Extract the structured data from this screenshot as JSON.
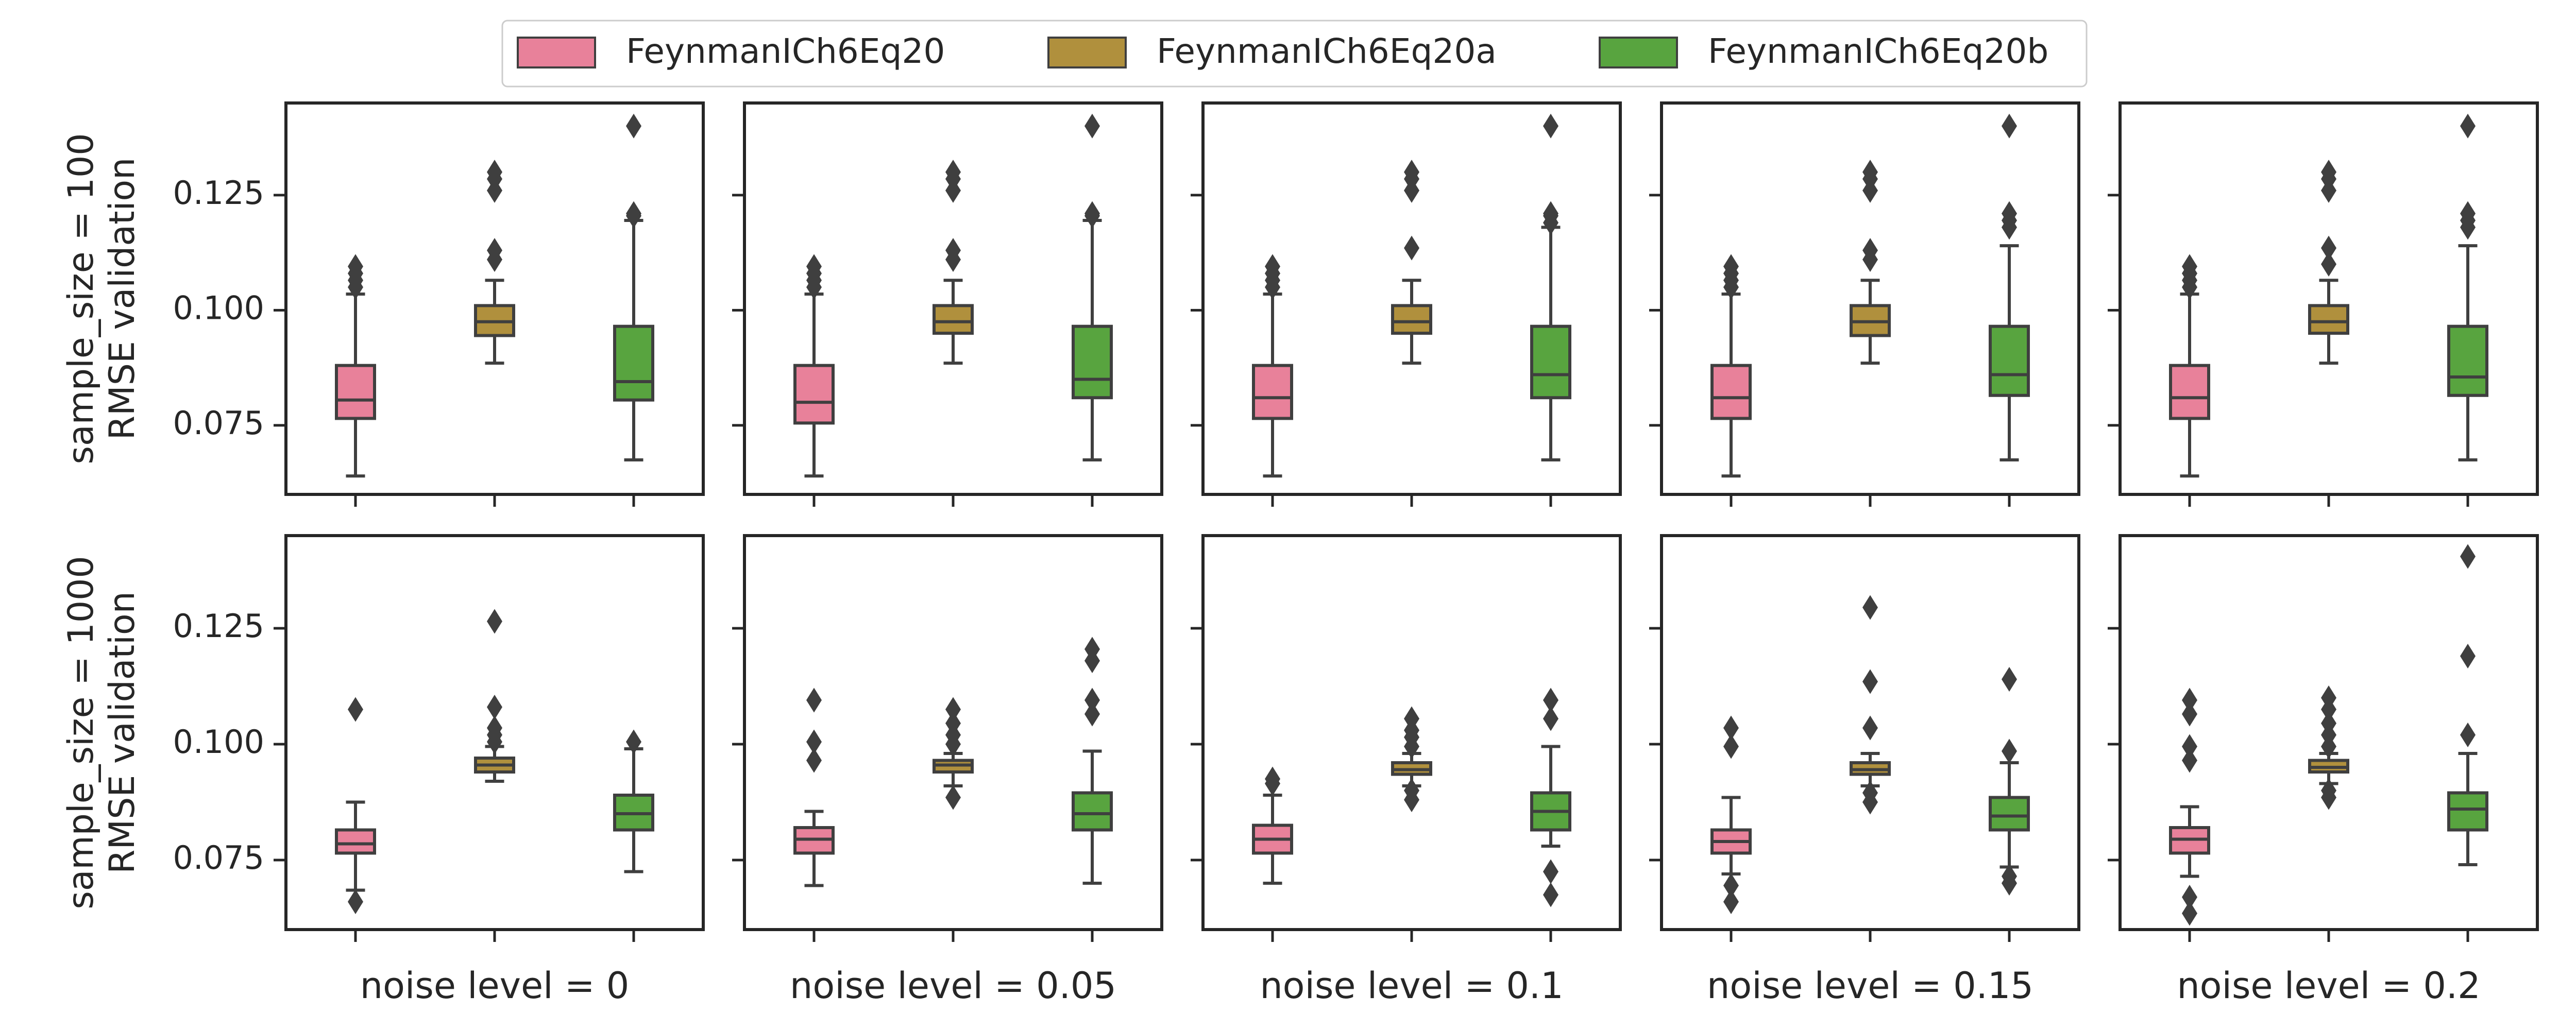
{
  "chart_data": {
    "type": "box",
    "layout": "faceted grid, 2 rows x 5 columns, shared y axis",
    "legend": {
      "placement": "top-center",
      "entries": [
        {
          "name": "FeynmanICh6Eq20",
          "color": "#E8819A"
        },
        {
          "name": "FeynmanICh6Eq20a",
          "color": "#B0903D"
        },
        {
          "name": "FeynmanICh6Eq20b",
          "color": "#58A43F"
        }
      ]
    },
    "ylim": [
      0.06,
      0.145
    ],
    "yticks": [
      0.075,
      0.1,
      0.125
    ],
    "ytick_labels": [
      "0.075",
      "0.100",
      "0.125"
    ],
    "grid": false,
    "columns": [
      "noise level = 0",
      "noise level = 0.05",
      "noise level = 0.1",
      "noise level = 0.15",
      "noise level = 0.2"
    ],
    "rows": [
      {
        "ylabel": [
          "sample_size = 100",
          "RMSE validation"
        ],
        "panels": [
          {
            "boxes": [
              {
                "q1": 0.0765,
                "median": 0.0805,
                "q3": 0.088,
                "wlo": 0.064,
                "whi": 0.1035,
                "outliers": [
                  0.105,
                  0.1065,
                  0.108,
                  0.1095
                ]
              },
              {
                "q1": 0.0945,
                "median": 0.0975,
                "q3": 0.101,
                "wlo": 0.0885,
                "whi": 0.1065,
                "outliers": [
                  0.111,
                  0.113,
                  0.126,
                  0.1285,
                  0.13
                ]
              },
              {
                "q1": 0.0805,
                "median": 0.0845,
                "q3": 0.0965,
                "wlo": 0.0675,
                "whi": 0.1195,
                "outliers": [
                  0.1205,
                  0.121,
                  0.14
                ]
              }
            ]
          },
          {
            "boxes": [
              {
                "q1": 0.0755,
                "median": 0.08,
                "q3": 0.088,
                "wlo": 0.064,
                "whi": 0.1035,
                "outliers": [
                  0.105,
                  0.1065,
                  0.108,
                  0.1095
                ]
              },
              {
                "q1": 0.095,
                "median": 0.0975,
                "q3": 0.101,
                "wlo": 0.0885,
                "whi": 0.1065,
                "outliers": [
                  0.111,
                  0.113,
                  0.126,
                  0.1285,
                  0.13
                ]
              },
              {
                "q1": 0.081,
                "median": 0.085,
                "q3": 0.0965,
                "wlo": 0.0675,
                "whi": 0.1195,
                "outliers": [
                  0.1205,
                  0.121,
                  0.14
                ]
              }
            ]
          },
          {
            "boxes": [
              {
                "q1": 0.0765,
                "median": 0.081,
                "q3": 0.088,
                "wlo": 0.064,
                "whi": 0.1035,
                "outliers": [
                  0.105,
                  0.1065,
                  0.108,
                  0.1095
                ]
              },
              {
                "q1": 0.095,
                "median": 0.0975,
                "q3": 0.101,
                "wlo": 0.0885,
                "whi": 0.1065,
                "outliers": [
                  0.1135,
                  0.126,
                  0.1285,
                  0.13
                ]
              },
              {
                "q1": 0.081,
                "median": 0.086,
                "q3": 0.0965,
                "wlo": 0.0675,
                "whi": 0.118,
                "outliers": [
                  0.119,
                  0.1205,
                  0.121,
                  0.14
                ]
              }
            ]
          },
          {
            "boxes": [
              {
                "q1": 0.0765,
                "median": 0.081,
                "q3": 0.088,
                "wlo": 0.064,
                "whi": 0.1035,
                "outliers": [
                  0.105,
                  0.1065,
                  0.108,
                  0.1095
                ]
              },
              {
                "q1": 0.0945,
                "median": 0.0975,
                "q3": 0.101,
                "wlo": 0.0885,
                "whi": 0.1065,
                "outliers": [
                  0.111,
                  0.113,
                  0.126,
                  0.1285,
                  0.13
                ]
              },
              {
                "q1": 0.0815,
                "median": 0.086,
                "q3": 0.0965,
                "wlo": 0.0675,
                "whi": 0.114,
                "outliers": [
                  0.118,
                  0.1195,
                  0.121,
                  0.14
                ]
              }
            ]
          },
          {
            "boxes": [
              {
                "q1": 0.0765,
                "median": 0.081,
                "q3": 0.088,
                "wlo": 0.064,
                "whi": 0.1035,
                "outliers": [
                  0.105,
                  0.1065,
                  0.108,
                  0.1095
                ]
              },
              {
                "q1": 0.095,
                "median": 0.0975,
                "q3": 0.101,
                "wlo": 0.0885,
                "whi": 0.1065,
                "outliers": [
                  0.11,
                  0.1135,
                  0.126,
                  0.1285,
                  0.13
                ]
              },
              {
                "q1": 0.0815,
                "median": 0.0855,
                "q3": 0.0965,
                "wlo": 0.0675,
                "whi": 0.114,
                "outliers": [
                  0.118,
                  0.1195,
                  0.121,
                  0.14
                ]
              }
            ]
          }
        ]
      },
      {
        "ylabel": [
          "sample_size = 1000",
          "RMSE validation"
        ],
        "panels": [
          {
            "boxes": [
              {
                "q1": 0.0765,
                "median": 0.0785,
                "q3": 0.0815,
                "wlo": 0.0685,
                "whi": 0.0875,
                "outliers": [
                  0.066,
                  0.1075
                ]
              },
              {
                "q1": 0.094,
                "median": 0.0955,
                "q3": 0.097,
                "wlo": 0.092,
                "whi": 0.0995,
                "outliers": [
                  0.1005,
                  0.102,
                  0.1035,
                  0.108,
                  0.1265
                ]
              },
              {
                "q1": 0.0815,
                "median": 0.085,
                "q3": 0.089,
                "wlo": 0.0725,
                "whi": 0.099,
                "outliers": [
                  0.1005
                ]
              }
            ]
          },
          {
            "boxes": [
              {
                "q1": 0.0765,
                "median": 0.0795,
                "q3": 0.082,
                "wlo": 0.0695,
                "whi": 0.0855,
                "outliers": [
                  0.0965,
                  0.1005,
                  0.1095
                ]
              },
              {
                "q1": 0.094,
                "median": 0.0955,
                "q3": 0.0965,
                "wlo": 0.091,
                "whi": 0.098,
                "outliers": [
                  0.0885,
                  0.1,
                  0.102,
                  0.1045,
                  0.1075
                ]
              },
              {
                "q1": 0.0815,
                "median": 0.085,
                "q3": 0.0895,
                "wlo": 0.07,
                "whi": 0.0985,
                "outliers": [
                  0.1065,
                  0.1095,
                  0.118,
                  0.1205
                ]
              }
            ]
          },
          {
            "boxes": [
              {
                "q1": 0.0765,
                "median": 0.0795,
                "q3": 0.0825,
                "wlo": 0.07,
                "whi": 0.089,
                "outliers": [
                  0.0915,
                  0.0925
                ]
              },
              {
                "q1": 0.0935,
                "median": 0.0945,
                "q3": 0.096,
                "wlo": 0.091,
                "whi": 0.098,
                "outliers": [
                  0.088,
                  0.09,
                  0.0995,
                  0.1015,
                  0.103,
                  0.1055
                ]
              },
              {
                "q1": 0.0815,
                "median": 0.0855,
                "q3": 0.0895,
                "wlo": 0.078,
                "whi": 0.0995,
                "outliers": [
                  0.0675,
                  0.0725,
                  0.1055,
                  0.1095
                ]
              }
            ]
          },
          {
            "boxes": [
              {
                "q1": 0.0765,
                "median": 0.079,
                "q3": 0.0815,
                "wlo": 0.072,
                "whi": 0.0885,
                "outliers": [
                  0.066,
                  0.0695,
                  0.0995,
                  0.1035
                ]
              },
              {
                "q1": 0.0935,
                "median": 0.0945,
                "q3": 0.096,
                "wlo": 0.091,
                "whi": 0.098,
                "outliers": [
                  0.0875,
                  0.0895,
                  0.1035,
                  0.1135,
                  0.1295
                ]
              },
              {
                "q1": 0.0815,
                "median": 0.0845,
                "q3": 0.0885,
                "wlo": 0.0735,
                "whi": 0.096,
                "outliers": [
                  0.07,
                  0.0715,
                  0.0985,
                  0.114
                ]
              }
            ]
          },
          {
            "boxes": [
              {
                "q1": 0.0765,
                "median": 0.0795,
                "q3": 0.082,
                "wlo": 0.0715,
                "whi": 0.0865,
                "outliers": [
                  0.0635,
                  0.067,
                  0.0965,
                  0.0995,
                  0.1065,
                  0.1095
                ]
              },
              {
                "q1": 0.094,
                "median": 0.095,
                "q3": 0.0965,
                "wlo": 0.0915,
                "whi": 0.098,
                "outliers": [
                  0.0885,
                  0.09,
                  0.0995,
                  0.102,
                  0.1045,
                  0.1075,
                  0.11
                ]
              },
              {
                "q1": 0.0815,
                "median": 0.086,
                "q3": 0.0895,
                "wlo": 0.074,
                "whi": 0.098,
                "outliers": [
                  0.102,
                  0.119,
                  0.1405
                ]
              }
            ]
          }
        ]
      }
    ]
  }
}
